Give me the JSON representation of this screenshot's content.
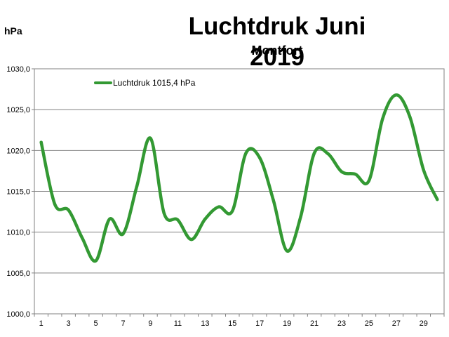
{
  "chart_data": {
    "type": "line",
    "title": "Luchtdruk Juni 2019",
    "subtitle": "Montfort",
    "ylabel": "hPa",
    "ylim": [
      1000,
      1030
    ],
    "yticks": [
      "1000,0",
      "1005,0",
      "1010,0",
      "1015,0",
      "1020,0",
      "1025,0",
      "1030,0"
    ],
    "x": [
      1,
      2,
      3,
      4,
      5,
      6,
      7,
      8,
      9,
      10,
      11,
      12,
      13,
      14,
      15,
      16,
      17,
      18,
      19,
      20,
      21,
      22,
      23,
      24,
      25,
      26,
      27,
      28,
      29,
      30
    ],
    "xticks": [
      "1",
      "3",
      "5",
      "7",
      "9",
      "11",
      "13",
      "15",
      "17",
      "19",
      "21",
      "23",
      "25",
      "27",
      "29"
    ],
    "grid": true,
    "legend_position": "top-left",
    "series": [
      {
        "name": "Luchtdruk 1015,4 hPa",
        "color": "#339933",
        "values": [
          1021.0,
          1013.4,
          1012.7,
          1009.3,
          1006.5,
          1011.6,
          1009.8,
          1015.6,
          1021.5,
          1012.3,
          1011.5,
          1009.1,
          1011.6,
          1013.1,
          1012.6,
          1019.7,
          1019.1,
          1013.9,
          1007.7,
          1011.9,
          1019.7,
          1019.6,
          1017.4,
          1017.1,
          1016.3,
          1023.9,
          1026.8,
          1024.1,
          1017.6,
          1014.0
        ]
      }
    ]
  }
}
